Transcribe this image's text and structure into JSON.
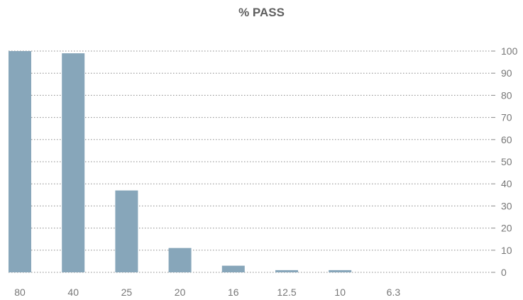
{
  "chart_data": {
    "type": "bar",
    "title": "% PASS",
    "xlabel": "",
    "ylabel": "",
    "categories": [
      "80",
      "40",
      "25",
      "20",
      "16",
      "12.5",
      "10",
      "6.3"
    ],
    "values": [
      100,
      99,
      37,
      11,
      3,
      1,
      1,
      0
    ],
    "ylim": [
      0,
      100
    ],
    "yticks": [
      0,
      10,
      20,
      30,
      40,
      50,
      60,
      70,
      80,
      90,
      100
    ],
    "y_axis_side": "right",
    "grid": "dotted horizontal",
    "bar_color": "#87a6ba",
    "grid_color": "#888888",
    "text_color": "#777777"
  }
}
